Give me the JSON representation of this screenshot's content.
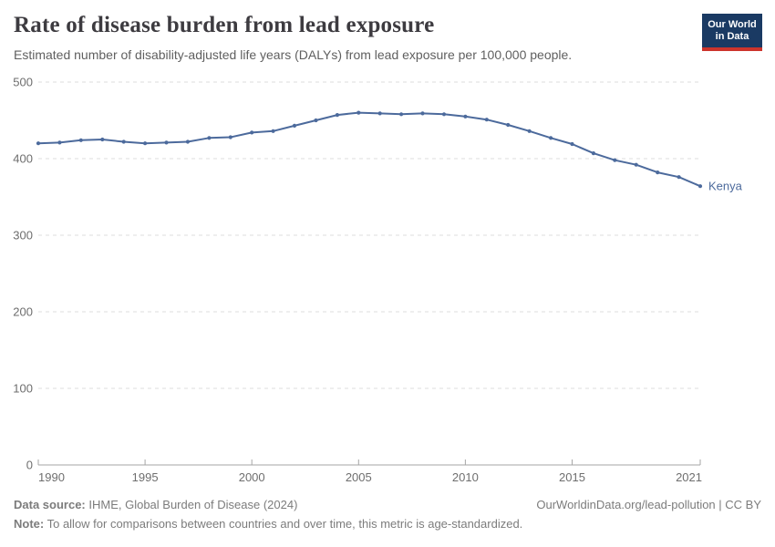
{
  "header": {
    "title": "Rate of disease burden from lead exposure",
    "subtitle": "Estimated number of disability-adjusted life years (DALYs) from lead exposure per 100,000 people."
  },
  "logo": {
    "line1": "Our World",
    "line2": "in Data",
    "background": "#1a3a63",
    "bar_color": "#cc342c"
  },
  "chart_data": {
    "type": "line",
    "title": "Rate of disease burden from lead exposure",
    "subtitle": "Estimated number of disability-adjusted life years (DALYs) from lead exposure per 100,000 people.",
    "x": [
      1990,
      1991,
      1992,
      1993,
      1994,
      1995,
      1996,
      1997,
      1998,
      1999,
      2000,
      2001,
      2002,
      2003,
      2004,
      2005,
      2006,
      2007,
      2008,
      2009,
      2010,
      2011,
      2012,
      2013,
      2014,
      2015,
      2016,
      2017,
      2018,
      2019,
      2020,
      2021
    ],
    "series": [
      {
        "name": "Kenya",
        "color": "#4C6A9C",
        "values": [
          420,
          421,
          424,
          425,
          422,
          420,
          421,
          422,
          427,
          428,
          434,
          436,
          443,
          450,
          457,
          460,
          459,
          458,
          459,
          458,
          455,
          451,
          444,
          436,
          427,
          419,
          407,
          398,
          392,
          382,
          376,
          364
        ]
      }
    ],
    "xlabel": "",
    "ylabel": "",
    "ylim": [
      0,
      500
    ],
    "yticks": [
      0,
      100,
      200,
      300,
      400,
      500
    ],
    "xticks": [
      1990,
      1995,
      2000,
      2005,
      2010,
      2015,
      2021
    ],
    "grid": "horizontal-dashed",
    "legend_position": "end-of-line"
  },
  "colors": {
    "line": "#4C6A9C",
    "grid": "#dddddd",
    "axis": "#a6a6a6",
    "tick_text": "#6e6e6e"
  },
  "footer": {
    "datasource_label": "Data source:",
    "datasource_text": " IHME, Global Burden of Disease (2024)",
    "rights": "OurWorldinData.org/lead-pollution | CC BY",
    "note_label": "Note:",
    "note_text": " To allow for comparisons between countries and over time, this metric is age-standardized."
  }
}
